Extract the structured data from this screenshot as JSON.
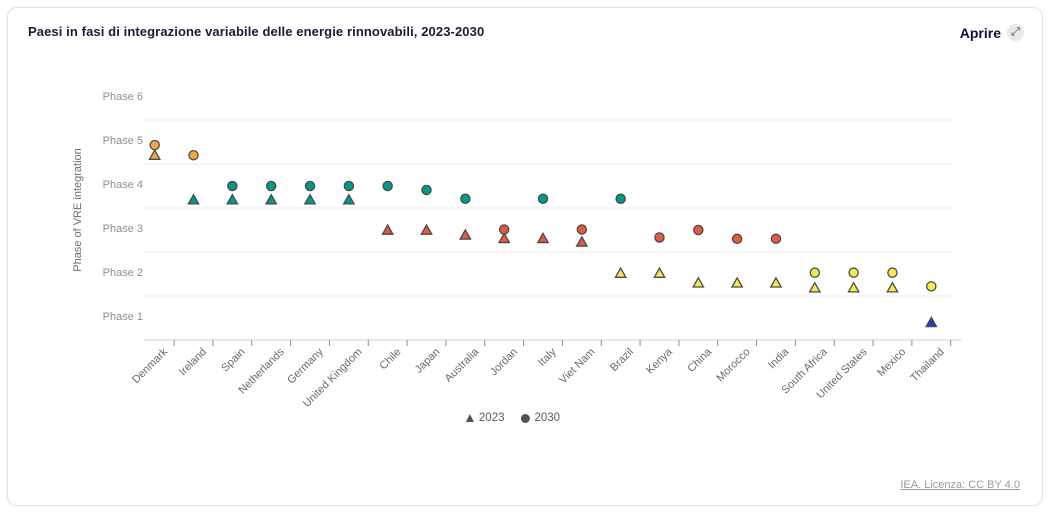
{
  "card": {
    "title": "Paesi in fasi di integrazione variabile delle energie rinnovabili, 2023-2030",
    "open_button_label": "Aprire",
    "open_button_icon": "expand-icon",
    "source_link_text": "IEA. Licenza: CC BY 4.0"
  },
  "legend": {
    "items": [
      {
        "label": "2023",
        "marker": "triangle"
      },
      {
        "label": "2030",
        "marker": "circle"
      }
    ],
    "marker_color": "#525252"
  },
  "chart_data": {
    "type": "scatter",
    "title": "Paesi in fasi di integrazione variabile delle energie rinnovabili, 2023-2030",
    "xlabel": "",
    "ylabel": "Phase of VRE integration",
    "ytick_labels": [
      "Phase 1",
      "Phase 2",
      "Phase 3",
      "Phase 4",
      "Phase 5",
      "Phase 6"
    ],
    "ylim": [
      0.5,
      6.5
    ],
    "grid": true,
    "legend_position": "bottom-center",
    "categories": [
      "Denmark",
      "Ireland",
      "Spain",
      "Netherlands",
      "Germany",
      "United Kingdom",
      "Chile",
      "Japan",
      "Australia",
      "Jordan",
      "Italy",
      "Viet Nam",
      "Brazil",
      "Kenya",
      "China",
      "Morocco",
      "India",
      "South Africa",
      "United States",
      "Mexico",
      "Thailand"
    ],
    "series": [
      {
        "name": "2023",
        "marker": "triangle",
        "phases": [
          5,
          4,
          4,
          4,
          4,
          4,
          3,
          3,
          3,
          3,
          3,
          3,
          2,
          2,
          2,
          2,
          2,
          2,
          2,
          2,
          1
        ],
        "plotted_values": [
          4.7,
          3.69,
          3.69,
          3.69,
          3.69,
          3.69,
          3.0,
          3.0,
          2.89,
          2.81,
          2.81,
          2.73,
          2.02,
          2.02,
          1.8,
          1.8,
          1.8,
          1.69,
          1.69,
          1.69,
          0.9
        ]
      },
      {
        "name": "2030",
        "marker": "circle",
        "phases": [
          5,
          5,
          4,
          4,
          4,
          4,
          4,
          4,
          4,
          3,
          4,
          3,
          4,
          3,
          3,
          3,
          3,
          2,
          2,
          2,
          2
        ],
        "plotted_values": [
          4.93,
          4.7,
          4.0,
          4.0,
          4.0,
          4.0,
          4.0,
          3.91,
          3.71,
          3.01,
          3.71,
          3.01,
          3.71,
          2.83,
          3.0,
          2.8,
          2.8,
          2.03,
          2.03,
          2.03,
          1.72
        ]
      }
    ],
    "phase_colors": {
      "1": "#1e3fc4",
      "2": "#f3ea4e",
      "3": "#e4593f",
      "4": "#009a8b",
      "5": "#f2a63e"
    },
    "marker_outline": "#4a4a4a",
    "gridline_color": "#ededed",
    "axis_color": "#cfcfcf",
    "tick_color": "#8c8c8c"
  }
}
